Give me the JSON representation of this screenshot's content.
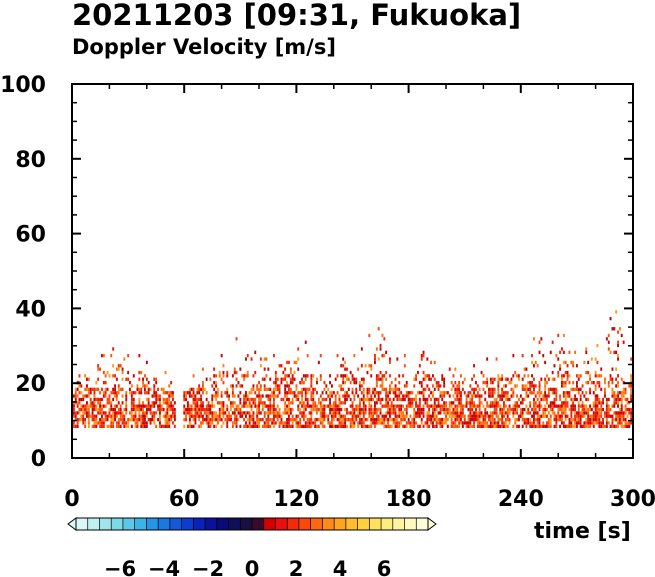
{
  "chart_data": {
    "type": "heatmap",
    "title": "20211203 [09:31, Fukuoka]",
    "subtitle": "Doppler Velocity [m/s]",
    "xlabel": "time [s]",
    "ylabel": "",
    "xlim": [
      0,
      300
    ],
    "ylim": [
      0,
      100
    ],
    "x_ticks": [
      "0",
      "60",
      "120",
      "180",
      "240",
      "300"
    ],
    "y_ticks": [
      "0",
      "20",
      "40",
      "60",
      "80",
      "100"
    ],
    "colorbar": {
      "range": [
        -8,
        8
      ],
      "ticks": [
        "−6",
        "−4",
        "−2",
        "0",
        "2",
        "4",
        "6"
      ],
      "colors": [
        "#d9f7f7",
        "#bff0f0",
        "#9fe6ec",
        "#7fd8e6",
        "#5cc8e6",
        "#3ab4e6",
        "#2396e6",
        "#1a78e0",
        "#1458d8",
        "#0e3ccc",
        "#0a22b8",
        "#0a129a",
        "#0a0a7a",
        "#10105a",
        "#1a1040",
        "#3a0a2a",
        "#d40000",
        "#e81010",
        "#f42a0a",
        "#fa4a0a",
        "#fc6a10",
        "#fe8a18",
        "#fea420",
        "#ffbc30",
        "#ffd040",
        "#ffe060",
        "#ffec80",
        "#fff4a0",
        "#fffac0",
        "#fffcd8"
      ]
    },
    "velocity_field": {
      "height_range_observed": [
        8,
        38
      ],
      "time_range_observed": [
        0,
        300
      ],
      "dominant_velocity_range": [
        0,
        3
      ],
      "notes": "Red-orange returns (mostly +0 to +3 m/s) from ~8 m to ~25 m throughout, occasional echoes up to ~37 m"
    },
    "max_echo_height_profile": {
      "time": [
        0,
        10,
        20,
        30,
        40,
        50,
        60,
        70,
        80,
        90,
        100,
        110,
        120,
        130,
        140,
        150,
        160,
        165,
        170,
        180,
        190,
        200,
        210,
        220,
        230,
        240,
        250,
        260,
        270,
        280,
        290,
        300
      ],
      "height": [
        18,
        22,
        30,
        24,
        22,
        20,
        19,
        20,
        26,
        28,
        27,
        24,
        26,
        28,
        24,
        26,
        29,
        34,
        27,
        25,
        28,
        20,
        21,
        24,
        22,
        24,
        33,
        30,
        27,
        25,
        37,
        26
      ]
    },
    "min_echo_height": 8
  }
}
